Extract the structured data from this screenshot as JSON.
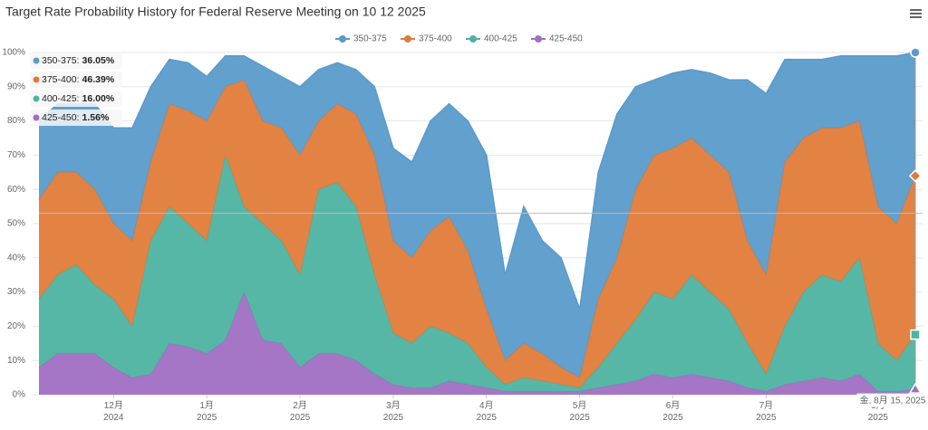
{
  "chart_data": {
    "type": "stacked-area",
    "title": "Target Rate Probability History for Federal Reserve Meeting on 10 12 2025",
    "categories": [
      null,
      null,
      null,
      null,
      "12月 2024",
      null,
      null,
      null,
      null,
      "1月 2025",
      null,
      null,
      null,
      null,
      "2月 2025",
      null,
      null,
      null,
      null,
      "3月 2025",
      null,
      null,
      null,
      null,
      "4月 2025",
      null,
      null,
      null,
      null,
      "5月 2025",
      null,
      null,
      null,
      null,
      "6月 2025",
      null,
      null,
      null,
      null,
      "7月 2025",
      null,
      null,
      null,
      null,
      null,
      "8月 2025",
      null,
      null
    ],
    "series": [
      {
        "name": "350-375",
        "color": "#5a9bcb",
        "values": [
          23,
          20,
          20,
          25,
          28,
          33,
          22,
          13,
          14,
          13,
          9,
          7,
          16,
          15,
          20,
          15,
          12,
          13,
          20,
          27,
          28,
          32,
          33,
          38,
          45,
          25,
          40,
          33,
          32,
          20,
          37,
          42,
          30,
          22,
          22,
          20,
          24,
          27,
          47,
          53,
          30,
          23,
          20,
          21,
          19,
          44,
          49,
          36.05
        ]
      },
      {
        "name": "375-400",
        "color": "#e07b39",
        "values": [
          29,
          30,
          27,
          28,
          22,
          25,
          23,
          30,
          33,
          35,
          20,
          37,
          30,
          33,
          35,
          20,
          23,
          27,
          35,
          27,
          25,
          28,
          34,
          27,
          17,
          7,
          10,
          8,
          5,
          3,
          20,
          25,
          38,
          40,
          44,
          40,
          40,
          40,
          30,
          29,
          48,
          45,
          43,
          45,
          40,
          40,
          40,
          46.39
        ]
      },
      {
        "name": "400-425",
        "color": "#4db3a2",
        "values": [
          20,
          23,
          26,
          20,
          20,
          15,
          39,
          40,
          36,
          33,
          54,
          25,
          34,
          30,
          27,
          48,
          50,
          45,
          29,
          15,
          13,
          18,
          14,
          12,
          6,
          2,
          4,
          3,
          2,
          1,
          6,
          12,
          18,
          24,
          23,
          29,
          25,
          21,
          13,
          5,
          17,
          26,
          30,
          29,
          34,
          14,
          9,
          16
        ]
      },
      {
        "name": "425-450",
        "color": "#a06fc2",
        "values": [
          8,
          12,
          12,
          12,
          8,
          5,
          6,
          15,
          14,
          12,
          16,
          30,
          16,
          15,
          8,
          12,
          12,
          10,
          6,
          3,
          2,
          2,
          4,
          3,
          2,
          1,
          1,
          1,
          1,
          1,
          2,
          3,
          4,
          6,
          5,
          6,
          5,
          4,
          2,
          1,
          3,
          4,
          5,
          4,
          6,
          1,
          1,
          1.56
        ]
      }
    ],
    "ylim": [
      0,
      100
    ],
    "yticks": [
      {
        "value": 0,
        "label": "0%"
      },
      {
        "value": 10,
        "label": "10%"
      },
      {
        "value": 20,
        "label": "20%"
      },
      {
        "value": 30,
        "label": "30%"
      },
      {
        "value": 40,
        "label": "40%"
      },
      {
        "value": 50,
        "label": "50%"
      },
      {
        "value": 60,
        "label": "60%"
      },
      {
        "value": 70,
        "label": "70%"
      },
      {
        "value": 80,
        "label": "80%"
      },
      {
        "value": 90,
        "label": "90%"
      },
      {
        "value": 100,
        "label": "100%"
      }
    ],
    "grid": true,
    "legend": "top",
    "tooltip_labels": [
      "36.05%",
      "46.39%",
      "16.00%",
      "1.56%"
    ],
    "crosshair_label": "金, 8月 15, 2025"
  }
}
